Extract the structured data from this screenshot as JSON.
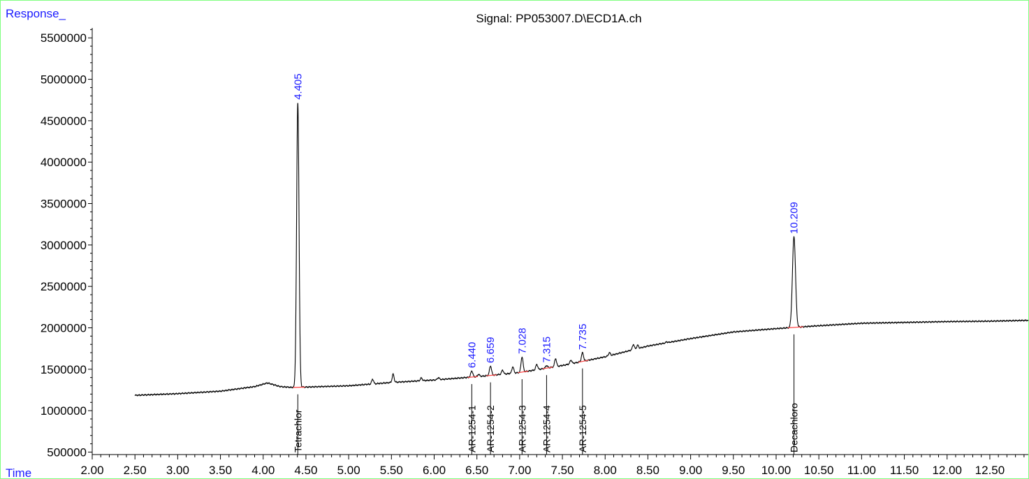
{
  "chart_data": {
    "type": "line",
    "title": "Signal: PP053007.D\\ECD1A.ch",
    "ylabel": "Response_",
    "xlabel": "Time",
    "xlim": [
      2.0,
      12.95
    ],
    "ylim": [
      470000,
      5620000
    ],
    "x_ticks": [
      "2.00",
      "2.50",
      "3.00",
      "3.50",
      "4.00",
      "4.50",
      "5.00",
      "5.50",
      "6.00",
      "6.50",
      "7.00",
      "7.50",
      "8.00",
      "8.50",
      "9.00",
      "9.50",
      "10.00",
      "10.50",
      "11.00",
      "11.50",
      "12.00",
      "12.50"
    ],
    "y_ticks": [
      "500000",
      "1000000",
      "1500000",
      "2000000",
      "2500000",
      "3000000",
      "3500000",
      "4000000",
      "4500000",
      "5000000",
      "5500000"
    ],
    "baseline": [
      [
        2.5,
        1185000
      ],
      [
        3.0,
        1205000
      ],
      [
        3.5,
        1235000
      ],
      [
        3.9,
        1290000
      ],
      [
        4.05,
        1335000
      ],
      [
        4.2,
        1290000
      ],
      [
        4.35,
        1280000
      ],
      [
        5.0,
        1300000
      ],
      [
        5.5,
        1340000
      ],
      [
        6.0,
        1370000
      ],
      [
        6.5,
        1410000
      ],
      [
        7.0,
        1460000
      ],
      [
        7.5,
        1545000
      ],
      [
        8.0,
        1650000
      ],
      [
        8.5,
        1780000
      ],
      [
        9.0,
        1870000
      ],
      [
        9.5,
        1950000
      ],
      [
        10.0,
        1990000
      ],
      [
        10.5,
        2025000
      ],
      [
        11.0,
        2055000
      ],
      [
        11.5,
        2065000
      ],
      [
        12.0,
        2075000
      ],
      [
        12.5,
        2080000
      ],
      [
        12.95,
        2090000
      ]
    ],
    "peaks": [
      {
        "rt": 4.405,
        "label": "4.405",
        "height": 4720000,
        "width": 0.014,
        "compound": "Tetrachlor"
      },
      {
        "rt": 6.44,
        "label": "6.440",
        "height": 1480000,
        "width": 0.012,
        "compound": "AR-1254-1"
      },
      {
        "rt": 6.659,
        "label": "6.659",
        "height": 1540000,
        "width": 0.012,
        "compound": "AR-1254-2"
      },
      {
        "rt": 7.028,
        "label": "7.028",
        "height": 1650000,
        "width": 0.012,
        "compound": "AR-1254-3"
      },
      {
        "rt": 7.315,
        "label": "7.315",
        "height": 1545000,
        "width": 0.012,
        "compound": "AR-1254-4"
      },
      {
        "rt": 7.735,
        "label": "7.735",
        "height": 1700000,
        "width": 0.012,
        "compound": "AR-1254-5"
      },
      {
        "rt": 10.209,
        "label": "10.209",
        "height": 3100000,
        "width": 0.018,
        "compound": "Decachloro"
      }
    ],
    "minor_peaks": [
      [
        5.28,
        1380000
      ],
      [
        5.52,
        1440000
      ],
      [
        5.85,
        1395000
      ],
      [
        6.05,
        1400000
      ],
      [
        6.52,
        1440000
      ],
      [
        6.8,
        1490000
      ],
      [
        6.92,
        1530000
      ],
      [
        7.2,
        1560000
      ],
      [
        7.42,
        1630000
      ],
      [
        7.6,
        1610000
      ],
      [
        8.05,
        1700000
      ],
      [
        8.33,
        1800000
      ],
      [
        8.38,
        1790000
      ],
      [
        8.72,
        1830000
      ]
    ],
    "colors": {
      "signal": "#000000",
      "frame": "#7fff7f",
      "annotation": "#1a1aff",
      "baseline_mark": "#ff4040"
    }
  }
}
